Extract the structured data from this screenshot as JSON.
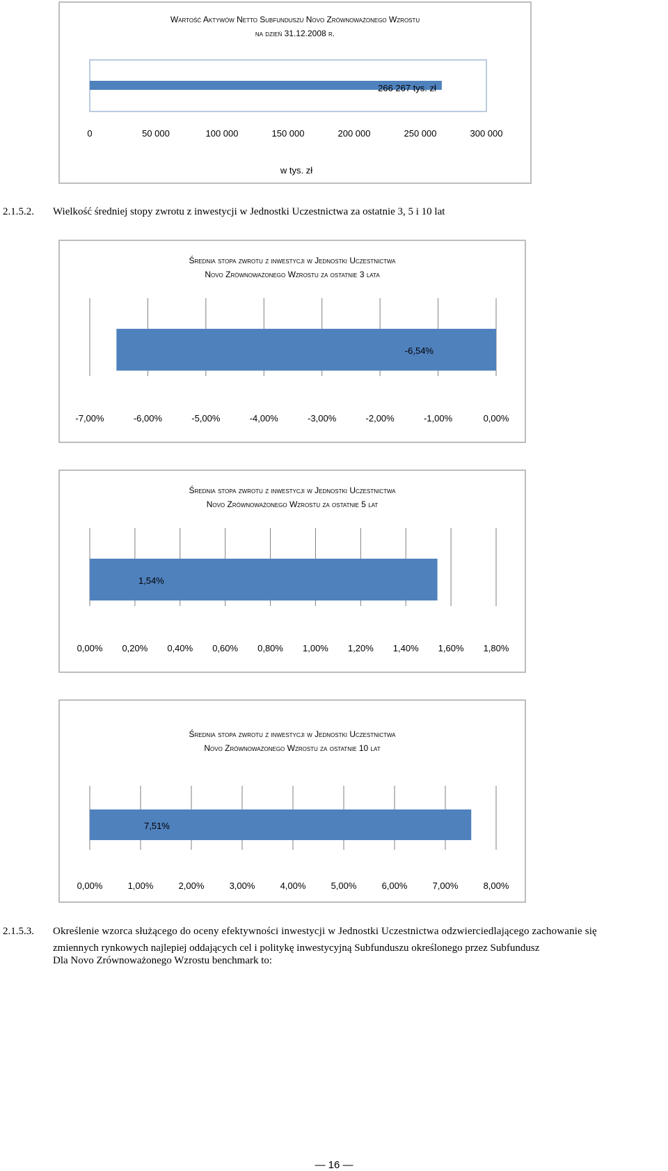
{
  "chart_data": [
    {
      "type": "bar",
      "orientation": "horizontal",
      "title_lines": [
        "Wartość Aktywów Netto Subfunduszu Novo Zrównoważonego Wzrostu",
        "na dzień 31.12.2008 r."
      ],
      "values": [
        266267
      ],
      "data_labels": [
        "266 267 tys. zł"
      ],
      "xlim": [
        0,
        300000
      ],
      "ticks": [
        0,
        50000,
        100000,
        150000,
        200000,
        250000,
        300000
      ],
      "tick_labels": [
        "0",
        "50 000",
        "100 000",
        "150 000",
        "200 000",
        "250 000",
        "300 000"
      ],
      "xlabel": "w tys. zł",
      "grid": false,
      "bar_color": "#4f81bd"
    },
    {
      "type": "bar",
      "orientation": "horizontal",
      "title_lines": [
        "Średnia stopa zwrotu z inwestycji w Jednostki Uczestnictwa",
        "Novo Zrównoważonego Wzrostu za ostatnie 3 lata"
      ],
      "values": [
        -6.54
      ],
      "data_labels": [
        "-6,54%"
      ],
      "xlim": [
        -7,
        0
      ],
      "ticks": [
        -7,
        -6,
        -5,
        -4,
        -3,
        -2,
        -1,
        0
      ],
      "tick_labels": [
        "-7,00%",
        "-6,00%",
        "-5,00%",
        "-4,00%",
        "-3,00%",
        "-2,00%",
        "-1,00%",
        "0,00%"
      ],
      "xlabel": "",
      "grid": true,
      "bar_color": "#4f81bd"
    },
    {
      "type": "bar",
      "orientation": "horizontal",
      "title_lines": [
        "Średnia stopa zwrotu z inwestycji w Jednostki Uczestnictwa",
        "Novo Zrównoważonego Wzrostu za ostatnie 5 lat"
      ],
      "values": [
        1.54
      ],
      "data_labels": [
        "1,54%"
      ],
      "xlim": [
        0,
        1.8
      ],
      "ticks": [
        0,
        0.2,
        0.4,
        0.6,
        0.8,
        1.0,
        1.2,
        1.4,
        1.6,
        1.8
      ],
      "tick_labels": [
        "0,00%",
        "0,20%",
        "0,40%",
        "0,60%",
        "0,80%",
        "1,00%",
        "1,20%",
        "1,40%",
        "1,60%",
        "1,80%"
      ],
      "xlabel": "",
      "grid": true,
      "bar_color": "#4f81bd"
    },
    {
      "type": "bar",
      "orientation": "horizontal",
      "title_lines": [
        "Średnia stopa zwrotu z inwestycji w Jednostki Uczestnictwa",
        "Novo Zrównoważonego Wzrostu za ostatnie 10 lat"
      ],
      "values": [
        7.51
      ],
      "data_labels": [
        "7,51%"
      ],
      "xlim": [
        0,
        8
      ],
      "ticks": [
        0,
        1,
        2,
        3,
        4,
        5,
        6,
        7,
        8
      ],
      "tick_labels": [
        "0,00%",
        "1,00%",
        "2,00%",
        "3,00%",
        "4,00%",
        "5,00%",
        "6,00%",
        "7,00%",
        "8,00%"
      ],
      "xlabel": "",
      "grid": true,
      "bar_color": "#4f81bd"
    }
  ],
  "sections": {
    "s2": {
      "number": "2.1.5.2.",
      "text": "Wielkość średniej stopy zwrotu z inwestycji w Jednostki Uczestnictwa za ostatnie 3, 5 i 10 lat"
    },
    "s3": {
      "number": "2.1.5.3.",
      "line1": "Określenie wzorca służącego do oceny efektywności inwestycji w Jednostki Uczestnictwa odzwierciedlającego zachowanie się",
      "line2": "zmiennych rynkowych najlepiej oddających cel i politykę inwestycyjną Subfunduszu określonego przez Subfundusz",
      "line3": "Dla Novo Zrównoważonego Wzrostu benchmark to:"
    }
  },
  "page_number": "— 16 —"
}
